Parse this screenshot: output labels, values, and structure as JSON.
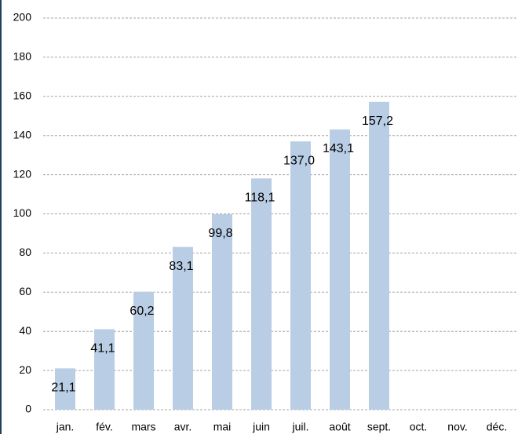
{
  "chart_data": {
    "type": "bar",
    "categories": [
      "jan.",
      "fév.",
      "mars",
      "avr.",
      "mai",
      "juin",
      "juil.",
      "août",
      "sept.",
      "oct.",
      "nov.",
      "déc."
    ],
    "values": [
      21.1,
      41.1,
      60.2,
      83.1,
      99.8,
      118.1,
      137.0,
      143.1,
      157.2,
      null,
      null,
      null
    ],
    "value_labels": [
      "21,1",
      "41,1",
      "60,2",
      "83,1",
      "99,8",
      "118,1",
      "137,0",
      "143,1",
      "157,2",
      null,
      null,
      null
    ],
    "color": "#b9cde5",
    "ylim": [
      0,
      200
    ],
    "yticks": [
      0,
      20,
      40,
      60,
      80,
      100,
      120,
      140,
      160,
      180,
      200
    ],
    "grid": true
  }
}
